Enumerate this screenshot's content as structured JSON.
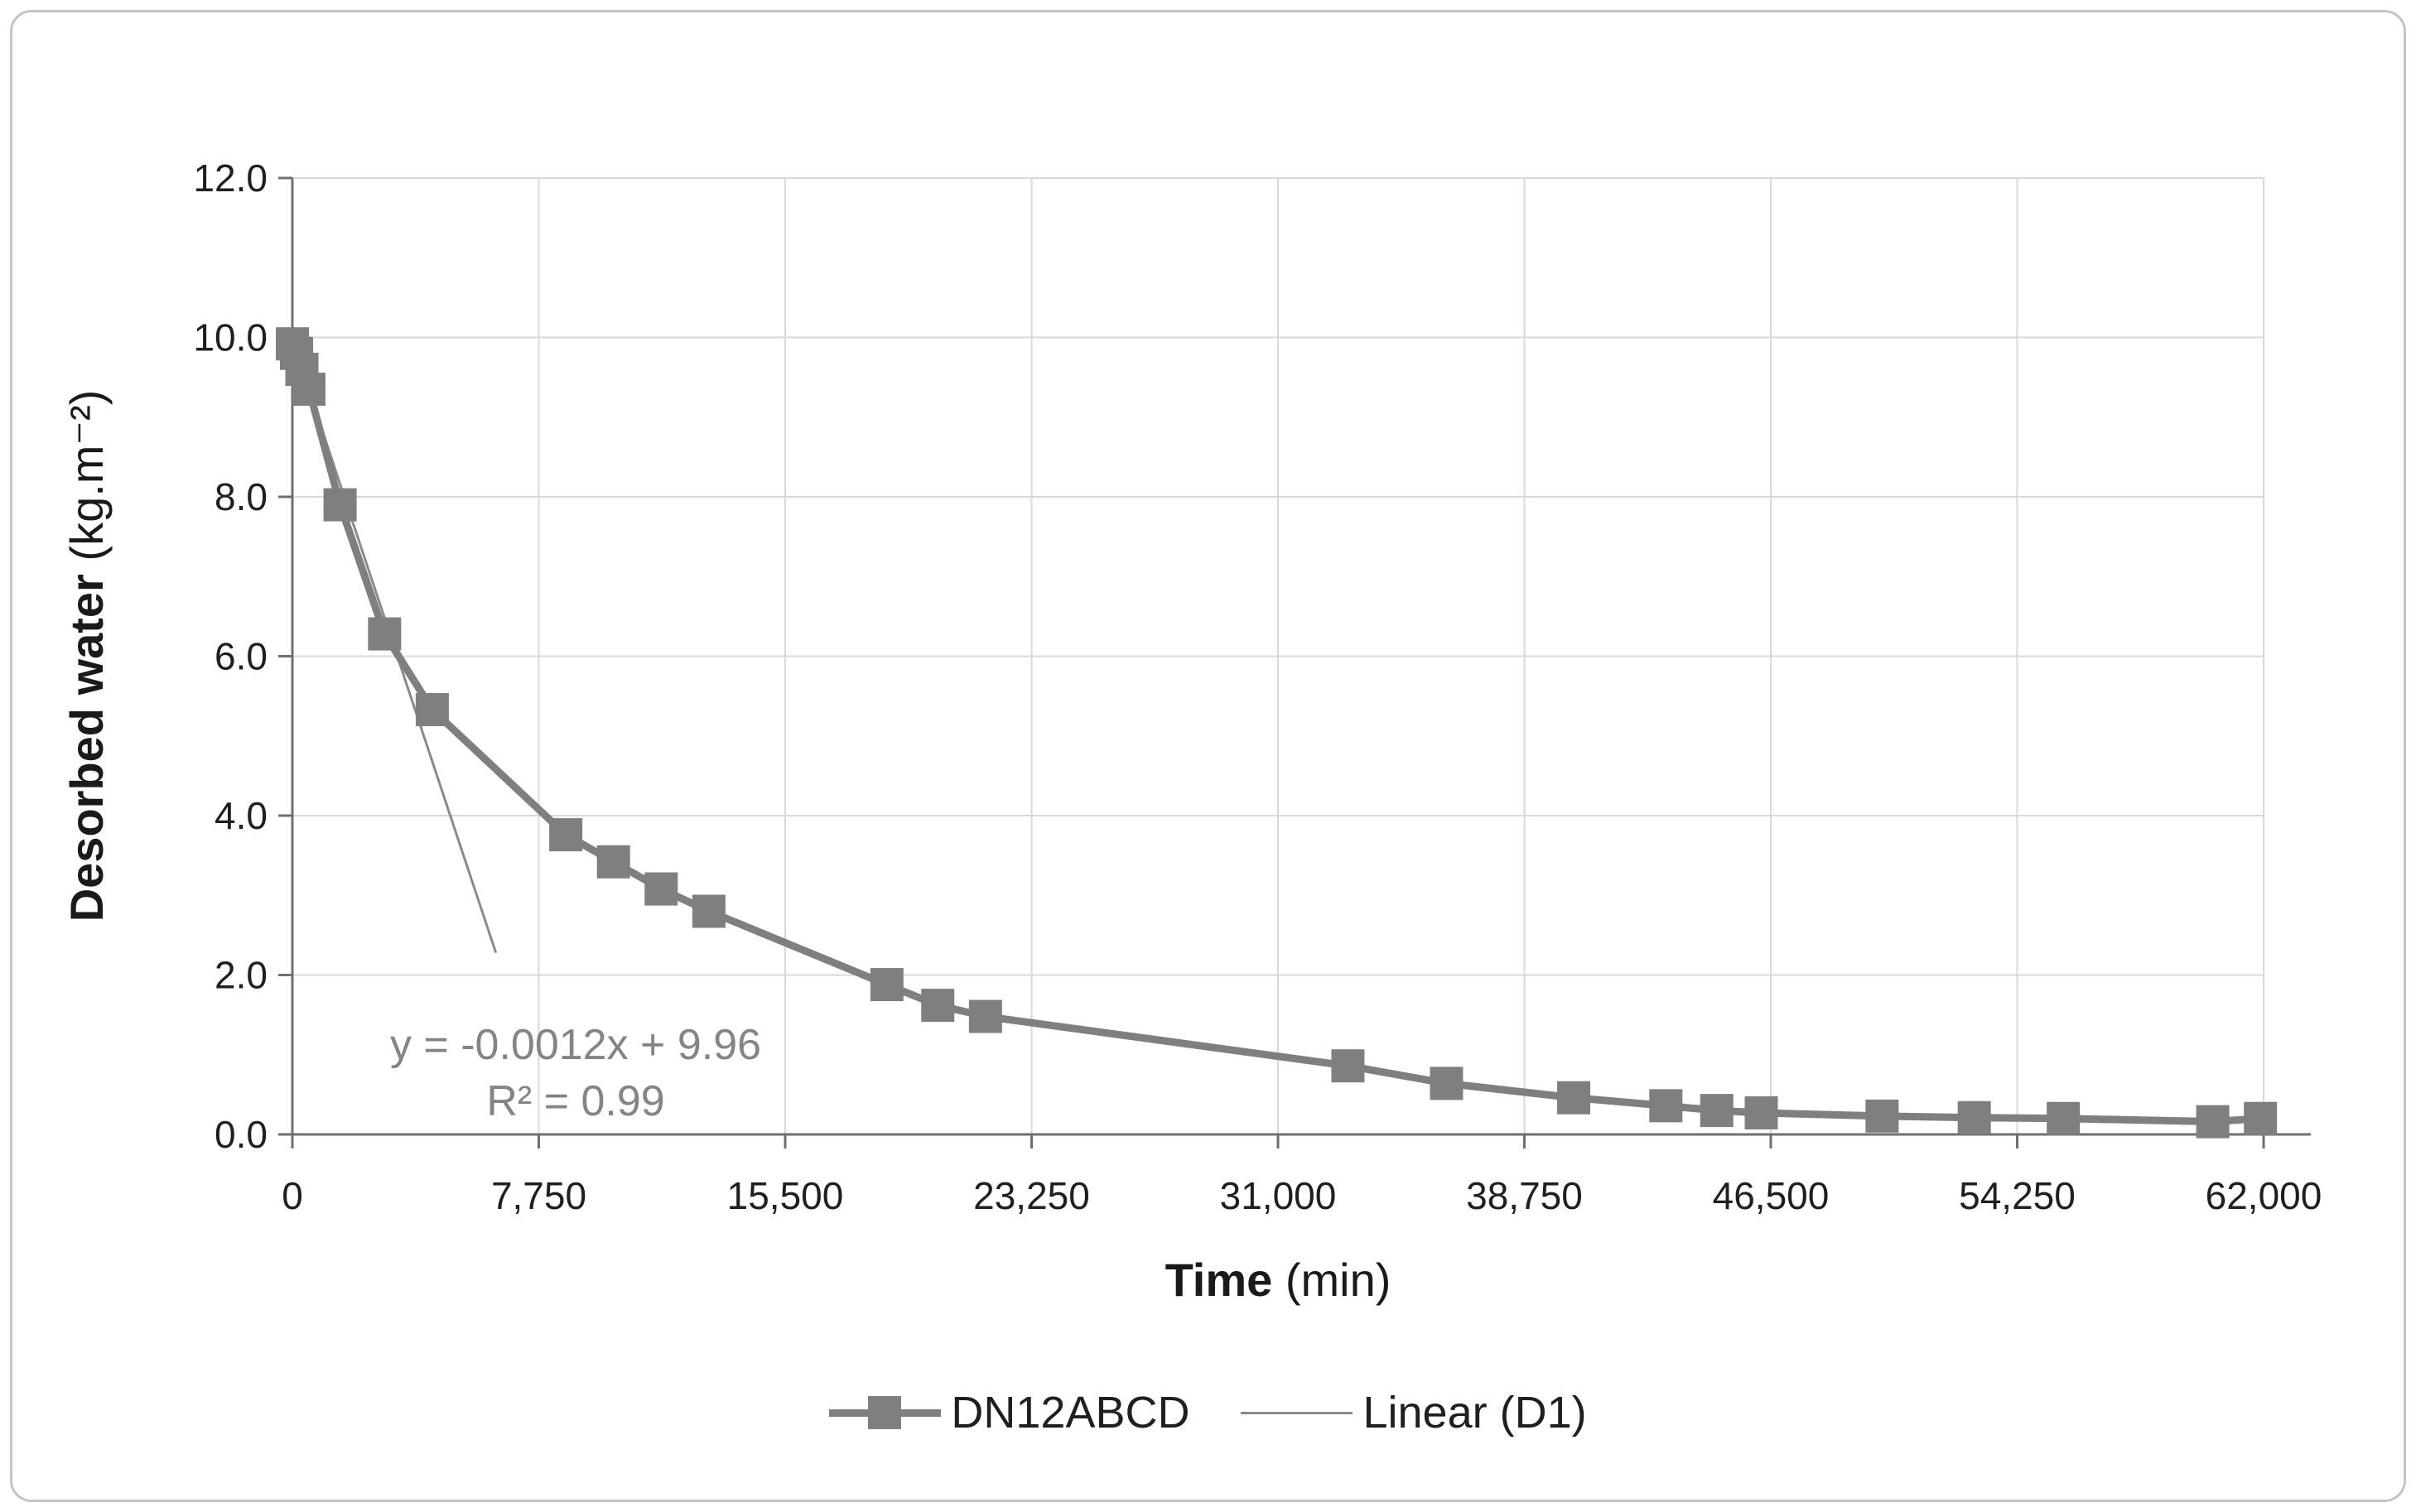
{
  "figure": {
    "border_color": "#c4c4c4",
    "background": "#ffffff",
    "text_color": "#1a1a1a"
  },
  "chart_data": {
    "type": "line",
    "title": "",
    "xlabel_bold": "Time",
    "xlabel_unit": " (min)",
    "ylabel_bold": "Desorbed water",
    "ylabel_unit": " (kg.m⁻²)",
    "xlim": [
      0,
      62000
    ],
    "ylim": [
      0,
      12
    ],
    "grid": true,
    "gridline_color": "#d9d9d9",
    "axis_line_color": "#6f6f6f",
    "tick_label_color": "#1f1f1f",
    "legend_position": "bottom-center",
    "xticks": [
      {
        "value": 0,
        "label": "0"
      },
      {
        "value": 7750,
        "label": "7,750"
      },
      {
        "value": 15500,
        "label": "15,500"
      },
      {
        "value": 23250,
        "label": "23,250"
      },
      {
        "value": 31000,
        "label": "31,000"
      },
      {
        "value": 38750,
        "label": "38,750"
      },
      {
        "value": 46500,
        "label": "46,500"
      },
      {
        "value": 54250,
        "label": "54,250"
      },
      {
        "value": 62000,
        "label": "62,000"
      }
    ],
    "yticks": [
      {
        "value": 0,
        "label": "0.0"
      },
      {
        "value": 2,
        "label": "2.0"
      },
      {
        "value": 4,
        "label": "4.0"
      },
      {
        "value": 6,
        "label": "6.0"
      },
      {
        "value": 8,
        "label": "8.0"
      },
      {
        "value": 10,
        "label": "10.0"
      },
      {
        "value": 12,
        "label": "12.0"
      }
    ],
    "series": [
      {
        "name": "DN12ABCD",
        "color": "#7f7f7f",
        "marker": "square",
        "points": [
          [
            0,
            9.92
          ],
          [
            130,
            9.8
          ],
          [
            300,
            9.6
          ],
          [
            520,
            9.35
          ],
          [
            1500,
            7.9
          ],
          [
            2900,
            6.28
          ],
          [
            4400,
            5.33
          ],
          [
            8600,
            3.76
          ],
          [
            10100,
            3.42
          ],
          [
            11600,
            3.08
          ],
          [
            13100,
            2.8
          ],
          [
            18700,
            1.88
          ],
          [
            20300,
            1.62
          ],
          [
            21800,
            1.48
          ],
          [
            33200,
            0.86
          ],
          [
            36300,
            0.64
          ],
          [
            40300,
            0.46
          ],
          [
            43200,
            0.36
          ],
          [
            44800,
            0.3
          ],
          [
            46200,
            0.27
          ],
          [
            50000,
            0.23
          ],
          [
            52900,
            0.21
          ],
          [
            55700,
            0.2
          ],
          [
            60400,
            0.16
          ],
          [
            61900,
            0.2
          ]
        ]
      }
    ],
    "trendline": {
      "name": "Linear (D1)",
      "color": "#8a8a8a",
      "slope": -0.0012,
      "intercept": 9.96,
      "x_range": [
        0,
        6400
      ]
    }
  },
  "annotation": {
    "line1": "y = -0.0012x + 9.96",
    "line2": "R² = 0.99",
    "color": "#848484"
  },
  "legend": {
    "items": [
      {
        "label": "DN12ABCD",
        "type": "line-marker"
      },
      {
        "label": "Linear (D1)",
        "type": "line"
      }
    ]
  }
}
